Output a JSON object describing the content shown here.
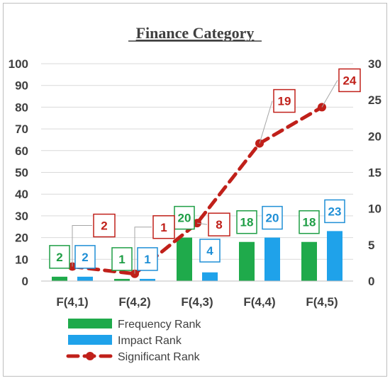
{
  "chart_data": {
    "type": "bar",
    "title": "Finance Category",
    "categories": [
      "F(4,1)",
      "F(4,2)",
      "F(4,3)",
      "F(4,4)",
      "F(4,5)"
    ],
    "ylim": [
      0,
      100
    ],
    "y_ticks": [
      "0",
      "10",
      "20",
      "30",
      "40",
      "50",
      "60",
      "70",
      "80",
      "90",
      "100"
    ],
    "y2lim": [
      0,
      30
    ],
    "y2_ticks": [
      "0",
      "5",
      "10",
      "15",
      "20",
      "25",
      "30"
    ],
    "grid": true,
    "legend_position": "bottom",
    "series": [
      {
        "name": "Frequency Rank",
        "kind": "bar",
        "axis": "left",
        "color": "#1faa4b",
        "label_color": "#1e9e45",
        "values": [
          2,
          1,
          20,
          18,
          18
        ]
      },
      {
        "name": "Impact Rank",
        "kind": "bar",
        "axis": "left",
        "color": "#1fa2ea",
        "label_color": "#1f8fd6",
        "values": [
          2,
          1,
          4,
          20,
          23
        ]
      },
      {
        "name": "Significant Rank",
        "kind": "line",
        "axis": "right",
        "style": "dashed",
        "color": "#c0201a",
        "label_color": "#c0201a",
        "values": [
          2,
          1,
          8,
          19,
          24
        ]
      }
    ]
  }
}
